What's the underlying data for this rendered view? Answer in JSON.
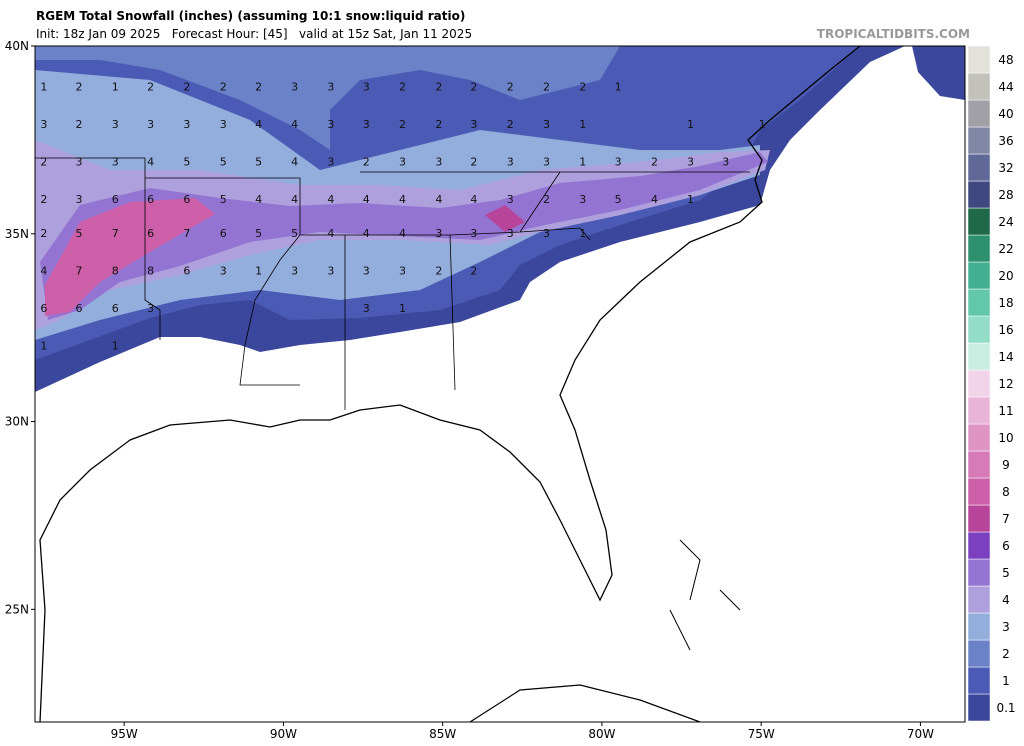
{
  "header": {
    "title": "RGEM Total Snowfall (inches) (assuming 10:1 snow:liquid ratio)",
    "subtitle": "Init: 18z Jan 09 2025   Forecast Hour: [45]   valid at 15z Sat, Jan 11 2025",
    "watermark": "TROPICALTIDBITS.COM"
  },
  "map": {
    "xlim": [
      -97.8,
      -68.6
    ],
    "ylim": [
      22,
      40
    ],
    "lat_ticks": [
      {
        "value": 40,
        "label": "40N"
      },
      {
        "value": 35,
        "label": "35N"
      },
      {
        "value": 30,
        "label": "30N"
      },
      {
        "value": 25,
        "label": "25N"
      }
    ],
    "lon_ticks": [
      {
        "value": -95,
        "label": "95W"
      },
      {
        "value": -90,
        "label": "90W"
      },
      {
        "value": -85,
        "label": "85W"
      },
      {
        "value": -80,
        "label": "80W"
      },
      {
        "value": -75,
        "label": "75W"
      },
      {
        "value": -70,
        "label": "70W"
      }
    ],
    "point_rows": [
      {
        "lat": 38.9,
        "lons": [
          -97.52,
          -96.42,
          -95.28,
          -94.17,
          -93.03,
          -91.89,
          -90.78,
          -89.65,
          -88.51,
          -87.4,
          -86.26,
          -85.12,
          -84.02,
          -82.88,
          -81.74,
          -80.6,
          -79.49
        ],
        "values": [
          1,
          2,
          1,
          2,
          2,
          2,
          2,
          3,
          3,
          3,
          2,
          2,
          2,
          2,
          2,
          2,
          1
        ]
      },
      {
        "lat": 37.9,
        "lons": [
          -97.52,
          -96.42,
          -95.28,
          -94.17,
          -93.03,
          -91.89,
          -90.78,
          -89.65,
          -88.51,
          -87.4,
          -86.26,
          -85.12,
          -84.02,
          -82.88,
          -81.74,
          -80.6,
          -77.22,
          -74.97
        ],
        "values": [
          3,
          2,
          3,
          3,
          3,
          3,
          4,
          4,
          3,
          3,
          2,
          2,
          3,
          2,
          3,
          1,
          1,
          1
        ]
      },
      {
        "lat": 36.9,
        "lons": [
          -97.52,
          -96.42,
          -95.28,
          -94.17,
          -93.03,
          -91.89,
          -90.78,
          -89.65,
          -88.51,
          -87.4,
          -86.26,
          -85.12,
          -84.02,
          -82.88,
          -81.74,
          -80.6,
          -79.49,
          -78.35,
          -77.22,
          -76.11
        ],
        "values": [
          2,
          3,
          3,
          4,
          5,
          5,
          5,
          4,
          3,
          2,
          3,
          3,
          2,
          3,
          3,
          1,
          3,
          2,
          3,
          3
        ]
      },
      {
        "lat": 35.9,
        "lons": [
          -97.52,
          -96.42,
          -95.28,
          -94.17,
          -93.03,
          -91.89,
          -90.78,
          -89.65,
          -88.51,
          -87.4,
          -86.26,
          -85.12,
          -84.02,
          -82.88,
          -81.74,
          -80.6,
          -79.49,
          -78.35,
          -77.22
        ],
        "values": [
          2,
          3,
          6,
          6,
          6,
          5,
          4,
          4,
          4,
          4,
          4,
          4,
          4,
          3,
          2,
          3,
          5,
          4,
          1
        ]
      },
      {
        "lat": 35.0,
        "lons": [
          -97.52,
          -96.42,
          -95.28,
          -94.17,
          -93.03,
          -91.89,
          -90.78,
          -89.65,
          -88.51,
          -87.4,
          -86.26,
          -85.12,
          -84.02,
          -82.88,
          -81.74,
          -80.6
        ],
        "values": [
          2,
          5,
          7,
          6,
          7,
          6,
          5,
          5,
          4,
          4,
          4,
          3,
          3,
          3,
          3,
          1
        ]
      },
      {
        "lat": 34.0,
        "lons": [
          -97.52,
          -96.42,
          -95.28,
          -94.17,
          -93.03,
          -91.89,
          -90.78,
          -89.65,
          -88.51,
          -87.4,
          -86.26,
          -85.12,
          -84.02
        ],
        "values": [
          4,
          7,
          8,
          8,
          6,
          3,
          1,
          3,
          3,
          3,
          3,
          2,
          2
        ]
      },
      {
        "lat": 33.0,
        "lons": [
          -97.52,
          -96.42,
          -95.28,
          -94.17,
          -87.4,
          -86.26
        ],
        "values": [
          6,
          6,
          6,
          3,
          3,
          1
        ]
      },
      {
        "lat": 32.0,
        "lons": [
          -97.52,
          -95.28
        ],
        "values": [
          1,
          1
        ]
      }
    ]
  },
  "colorbar": {
    "levels": [
      0.1,
      1,
      2,
      3,
      4,
      5,
      6,
      7,
      8,
      9,
      10,
      11,
      12,
      14,
      16,
      18,
      20,
      22,
      24,
      28,
      32,
      36,
      40,
      44,
      48
    ],
    "colors": [
      "#3b479c",
      "#4b5bb5",
      "#6b82c9",
      "#93aedd",
      "#aea0dc",
      "#9474d2",
      "#7a40c0",
      "#b8459a",
      "#cc5fa8",
      "#d67ab8",
      "#de95c6",
      "#e8b4d8",
      "#f2d4ea",
      "#c9ede0",
      "#93dcc5",
      "#62c8a9",
      "#42b090",
      "#2f9070",
      "#1f6849",
      "#3f4880",
      "#5f6897",
      "#8088a6",
      "#a0a0a6",
      "#c2c2ba",
      "#e2e2da"
    ]
  }
}
